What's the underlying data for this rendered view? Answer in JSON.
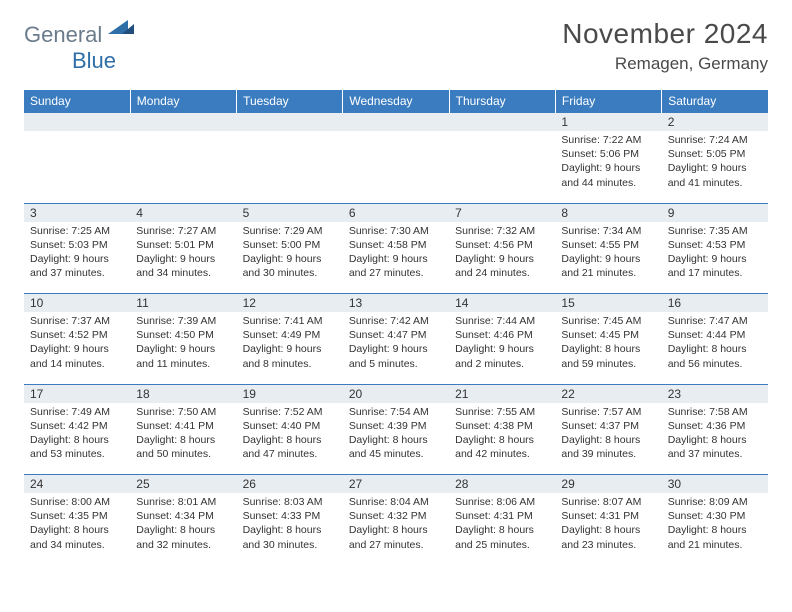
{
  "logo": {
    "part1": "General",
    "part2": "Blue"
  },
  "title": "November 2024",
  "location": "Remagen, Germany",
  "colors": {
    "header_bg": "#3a7cbf",
    "header_text": "#ffffff",
    "daynum_bg": "#e8edf2",
    "border": "#3a7cbf",
    "logo_gray": "#6b7b8c",
    "logo_blue": "#2f6fa8"
  },
  "weekdays": [
    "Sunday",
    "Monday",
    "Tuesday",
    "Wednesday",
    "Thursday",
    "Friday",
    "Saturday"
  ],
  "weeks": [
    [
      null,
      null,
      null,
      null,
      null,
      {
        "n": "1",
        "sr": "7:22 AM",
        "ss": "5:06 PM",
        "dl": "9 hours and 44 minutes."
      },
      {
        "n": "2",
        "sr": "7:24 AM",
        "ss": "5:05 PM",
        "dl": "9 hours and 41 minutes."
      }
    ],
    [
      {
        "n": "3",
        "sr": "7:25 AM",
        "ss": "5:03 PM",
        "dl": "9 hours and 37 minutes."
      },
      {
        "n": "4",
        "sr": "7:27 AM",
        "ss": "5:01 PM",
        "dl": "9 hours and 34 minutes."
      },
      {
        "n": "5",
        "sr": "7:29 AM",
        "ss": "5:00 PM",
        "dl": "9 hours and 30 minutes."
      },
      {
        "n": "6",
        "sr": "7:30 AM",
        "ss": "4:58 PM",
        "dl": "9 hours and 27 minutes."
      },
      {
        "n": "7",
        "sr": "7:32 AM",
        "ss": "4:56 PM",
        "dl": "9 hours and 24 minutes."
      },
      {
        "n": "8",
        "sr": "7:34 AM",
        "ss": "4:55 PM",
        "dl": "9 hours and 21 minutes."
      },
      {
        "n": "9",
        "sr": "7:35 AM",
        "ss": "4:53 PM",
        "dl": "9 hours and 17 minutes."
      }
    ],
    [
      {
        "n": "10",
        "sr": "7:37 AM",
        "ss": "4:52 PM",
        "dl": "9 hours and 14 minutes."
      },
      {
        "n": "11",
        "sr": "7:39 AM",
        "ss": "4:50 PM",
        "dl": "9 hours and 11 minutes."
      },
      {
        "n": "12",
        "sr": "7:41 AM",
        "ss": "4:49 PM",
        "dl": "9 hours and 8 minutes."
      },
      {
        "n": "13",
        "sr": "7:42 AM",
        "ss": "4:47 PM",
        "dl": "9 hours and 5 minutes."
      },
      {
        "n": "14",
        "sr": "7:44 AM",
        "ss": "4:46 PM",
        "dl": "9 hours and 2 minutes."
      },
      {
        "n": "15",
        "sr": "7:45 AM",
        "ss": "4:45 PM",
        "dl": "8 hours and 59 minutes."
      },
      {
        "n": "16",
        "sr": "7:47 AM",
        "ss": "4:44 PM",
        "dl": "8 hours and 56 minutes."
      }
    ],
    [
      {
        "n": "17",
        "sr": "7:49 AM",
        "ss": "4:42 PM",
        "dl": "8 hours and 53 minutes."
      },
      {
        "n": "18",
        "sr": "7:50 AM",
        "ss": "4:41 PM",
        "dl": "8 hours and 50 minutes."
      },
      {
        "n": "19",
        "sr": "7:52 AM",
        "ss": "4:40 PM",
        "dl": "8 hours and 47 minutes."
      },
      {
        "n": "20",
        "sr": "7:54 AM",
        "ss": "4:39 PM",
        "dl": "8 hours and 45 minutes."
      },
      {
        "n": "21",
        "sr": "7:55 AM",
        "ss": "4:38 PM",
        "dl": "8 hours and 42 minutes."
      },
      {
        "n": "22",
        "sr": "7:57 AM",
        "ss": "4:37 PM",
        "dl": "8 hours and 39 minutes."
      },
      {
        "n": "23",
        "sr": "7:58 AM",
        "ss": "4:36 PM",
        "dl": "8 hours and 37 minutes."
      }
    ],
    [
      {
        "n": "24",
        "sr": "8:00 AM",
        "ss": "4:35 PM",
        "dl": "8 hours and 34 minutes."
      },
      {
        "n": "25",
        "sr": "8:01 AM",
        "ss": "4:34 PM",
        "dl": "8 hours and 32 minutes."
      },
      {
        "n": "26",
        "sr": "8:03 AM",
        "ss": "4:33 PM",
        "dl": "8 hours and 30 minutes."
      },
      {
        "n": "27",
        "sr": "8:04 AM",
        "ss": "4:32 PM",
        "dl": "8 hours and 27 minutes."
      },
      {
        "n": "28",
        "sr": "8:06 AM",
        "ss": "4:31 PM",
        "dl": "8 hours and 25 minutes."
      },
      {
        "n": "29",
        "sr": "8:07 AM",
        "ss": "4:31 PM",
        "dl": "8 hours and 23 minutes."
      },
      {
        "n": "30",
        "sr": "8:09 AM",
        "ss": "4:30 PM",
        "dl": "8 hours and 21 minutes."
      }
    ]
  ],
  "labels": {
    "sunrise": "Sunrise:",
    "sunset": "Sunset:",
    "daylight": "Daylight:"
  }
}
